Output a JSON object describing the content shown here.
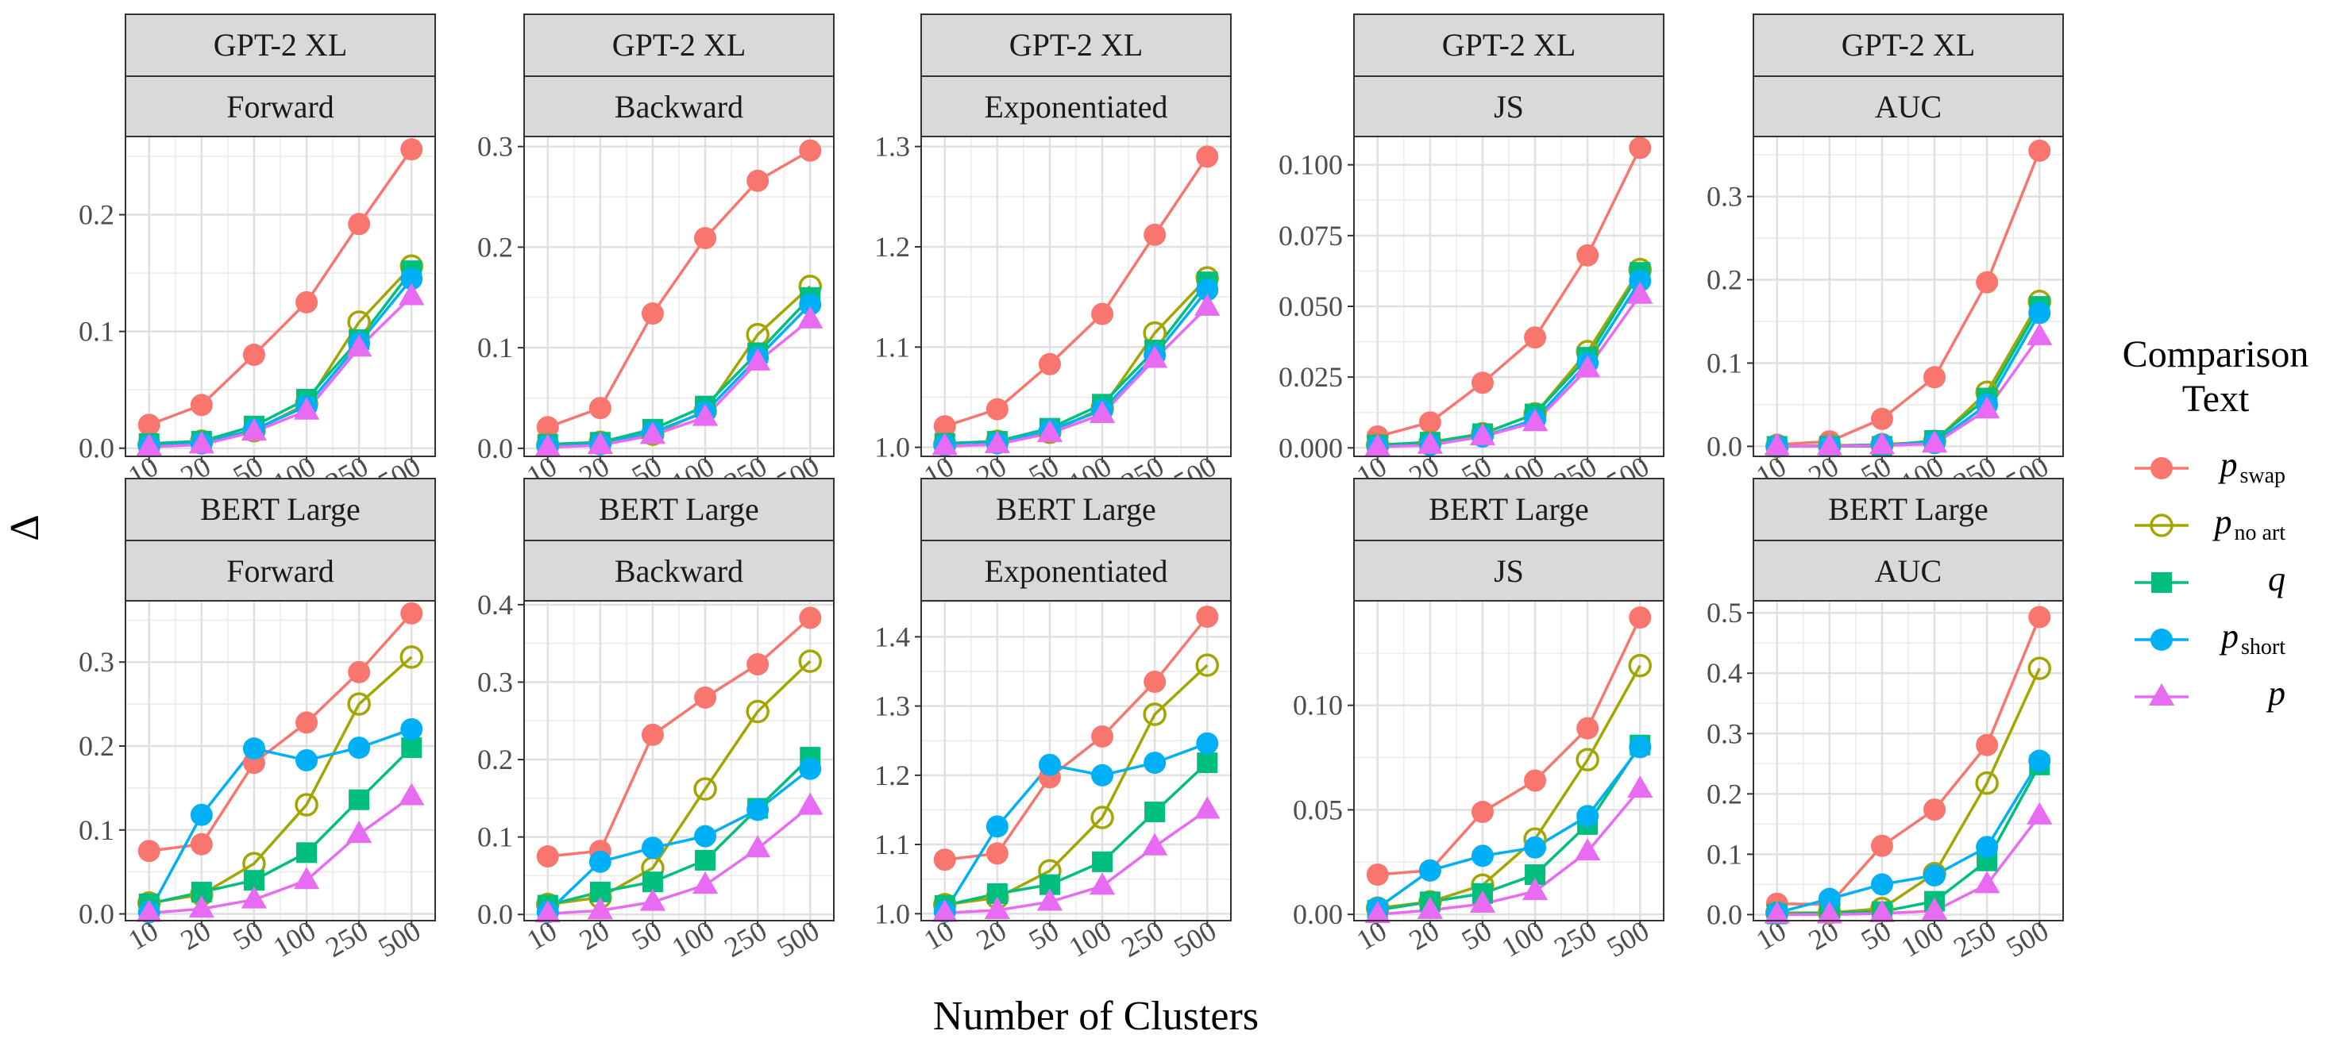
{
  "chart_data": {
    "type": "line",
    "xlabel": "Number of Clusters",
    "ylabel": "Δ",
    "x_categories": [
      "10",
      "20",
      "50",
      "100",
      "250",
      "500"
    ],
    "legend": {
      "title_lines": [
        "Comparison",
        "Text"
      ],
      "entries": [
        {
          "key": "pswap",
          "base": "p",
          "sub": "swap",
          "color": "#F8766D",
          "marker": "circle-filled"
        },
        {
          "key": "pnoart",
          "base": "p",
          "sub": "no art",
          "color": "#A3A500",
          "marker": "circle-open"
        },
        {
          "key": "q",
          "base": "q",
          "sub": "",
          "color": "#00BF7D",
          "marker": "square"
        },
        {
          "key": "pshort",
          "base": "p",
          "sub": "short",
          "color": "#00B0F6",
          "marker": "circle-filled"
        },
        {
          "key": "p",
          "base": "p",
          "sub": "",
          "color": "#E76BF3",
          "marker": "triangle"
        }
      ]
    },
    "panels": [
      {
        "model": "GPT-2 XL",
        "metric": "Forward",
        "ylim": [
          -0.007,
          0.267
        ],
        "yticks": [
          0.0,
          0.1,
          0.2
        ],
        "ytick_labels": [
          "0.0",
          "0.1",
          "0.2"
        ],
        "series": {
          "pswap": [
            0.02,
            0.037,
            0.08,
            0.125,
            0.192,
            0.256
          ],
          "pnoart": [
            0.003,
            0.006,
            0.015,
            0.038,
            0.108,
            0.156
          ],
          "q": [
            0.004,
            0.006,
            0.019,
            0.042,
            0.093,
            0.152
          ],
          "pshort": [
            0.002,
            0.004,
            0.016,
            0.036,
            0.09,
            0.145
          ],
          "p": [
            0.001,
            0.003,
            0.014,
            0.032,
            0.086,
            0.13
          ]
        }
      },
      {
        "model": "GPT-2 XL",
        "metric": "Backward",
        "ylim": [
          -0.008,
          0.31
        ],
        "yticks": [
          0.0,
          0.1,
          0.2,
          0.3
        ],
        "ytick_labels": [
          "0.0",
          "0.1",
          "0.2",
          "0.3"
        ],
        "series": {
          "pswap": [
            0.021,
            0.04,
            0.134,
            0.209,
            0.266,
            0.296
          ],
          "pnoart": [
            0.003,
            0.006,
            0.014,
            0.037,
            0.113,
            0.161
          ],
          "q": [
            0.004,
            0.006,
            0.019,
            0.042,
            0.095,
            0.15
          ],
          "pshort": [
            0.002,
            0.004,
            0.016,
            0.036,
            0.09,
            0.143
          ],
          "p": [
            0.001,
            0.003,
            0.013,
            0.031,
            0.086,
            0.128
          ]
        }
      },
      {
        "model": "GPT-2 XL",
        "metric": "Exponentiated",
        "ylim": [
          0.991,
          1.31
        ],
        "yticks": [
          1.0,
          1.1,
          1.2,
          1.3
        ],
        "ytick_labels": [
          "1.0",
          "1.1",
          "1.2",
          "1.3"
        ],
        "series": {
          "pswap": [
            1.021,
            1.038,
            1.083,
            1.133,
            1.212,
            1.29
          ],
          "pnoart": [
            1.003,
            1.006,
            1.015,
            1.039,
            1.114,
            1.169
          ],
          "q": [
            1.004,
            1.006,
            1.019,
            1.043,
            1.097,
            1.165
          ],
          "pshort": [
            1.002,
            1.004,
            1.017,
            1.037,
            1.092,
            1.157
          ],
          "p": [
            1.001,
            1.003,
            1.014,
            1.033,
            1.088,
            1.14
          ]
        }
      },
      {
        "model": "GPT-2 XL",
        "metric": "JS",
        "ylim": [
          -0.003,
          0.11
        ],
        "yticks": [
          0.0,
          0.025,
          0.05,
          0.075,
          0.1
        ],
        "ytick_labels": [
          "0.000",
          "0.025",
          "0.050",
          "0.075",
          "0.100"
        ],
        "series": {
          "pswap": [
            0.004,
            0.009,
            0.023,
            0.039,
            0.068,
            0.106
          ],
          "pnoart": [
            0.001,
            0.002,
            0.005,
            0.012,
            0.034,
            0.063
          ],
          "q": [
            0.001,
            0.002,
            0.005,
            0.012,
            0.032,
            0.062
          ],
          "pshort": [
            0.0005,
            0.001,
            0.004,
            0.01,
            0.03,
            0.059
          ],
          "p": [
            0.0003,
            0.001,
            0.004,
            0.009,
            0.028,
            0.054
          ]
        }
      },
      {
        "model": "GPT-2 XL",
        "metric": "AUC",
        "ylim": [
          -0.012,
          0.372
        ],
        "yticks": [
          0.0,
          0.1,
          0.2,
          0.3
        ],
        "ytick_labels": [
          "0.0",
          "0.1",
          "0.2",
          "0.3"
        ],
        "series": {
          "pswap": [
            0.002,
            0.006,
            0.033,
            0.083,
            0.197,
            0.355
          ],
          "pnoart": [
            0.0,
            0.001,
            0.002,
            0.006,
            0.065,
            0.174
          ],
          "q": [
            0.0,
            0.0,
            0.0,
            0.007,
            0.058,
            0.168
          ],
          "pshort": [
            0.0,
            0.0,
            0.002,
            0.004,
            0.05,
            0.16
          ],
          "p": [
            0.0,
            0.0,
            0.001,
            0.003,
            0.044,
            0.132
          ]
        }
      },
      {
        "model": "BERT Large",
        "metric": "Forward",
        "ylim": [
          -0.008,
          0.373
        ],
        "yticks": [
          0.0,
          0.1,
          0.2,
          0.3
        ],
        "ytick_labels": [
          "0.0",
          "0.1",
          "0.2",
          "0.3"
        ],
        "series": {
          "pswap": [
            0.075,
            0.083,
            0.18,
            0.228,
            0.288,
            0.358
          ],
          "pnoart": [
            0.013,
            0.023,
            0.06,
            0.13,
            0.25,
            0.306
          ],
          "q": [
            0.012,
            0.026,
            0.04,
            0.073,
            0.136,
            0.198
          ],
          "pshort": [
            0.002,
            0.118,
            0.197,
            0.183,
            0.198,
            0.22
          ],
          "p": [
            0.001,
            0.006,
            0.017,
            0.04,
            0.095,
            0.14
          ]
        }
      },
      {
        "model": "BERT Large",
        "metric": "Backward",
        "ylim": [
          -0.008,
          0.405
        ],
        "yticks": [
          0.0,
          0.1,
          0.2,
          0.3,
          0.4
        ],
        "ytick_labels": [
          "0.0",
          "0.1",
          "0.2",
          "0.3",
          "0.4"
        ],
        "series": {
          "pswap": [
            0.075,
            0.082,
            0.232,
            0.28,
            0.323,
            0.383
          ],
          "pnoart": [
            0.013,
            0.022,
            0.06,
            0.162,
            0.262,
            0.327
          ],
          "q": [
            0.012,
            0.029,
            0.042,
            0.07,
            0.137,
            0.203
          ],
          "pshort": [
            0.003,
            0.068,
            0.086,
            0.101,
            0.135,
            0.188
          ],
          "p": [
            0.001,
            0.005,
            0.016,
            0.038,
            0.085,
            0.14
          ]
        }
      },
      {
        "model": "BERT Large",
        "metric": "Exponentiated",
        "ylim": [
          0.99,
          1.452
        ],
        "yticks": [
          1.0,
          1.1,
          1.2,
          1.3,
          1.4
        ],
        "ytick_labels": [
          "1.0",
          "1.1",
          "1.2",
          "1.3",
          "1.4"
        ],
        "series": {
          "pswap": [
            1.078,
            1.087,
            1.197,
            1.256,
            1.335,
            1.429
          ],
          "pnoart": [
            1.013,
            1.023,
            1.062,
            1.139,
            1.288,
            1.359
          ],
          "q": [
            1.012,
            1.029,
            1.042,
            1.075,
            1.147,
            1.218
          ],
          "pshort": [
            1.003,
            1.126,
            1.215,
            1.2,
            1.218,
            1.246
          ],
          "p": [
            1.001,
            1.005,
            1.017,
            1.04,
            1.097,
            1.15
          ]
        }
      },
      {
        "model": "BERT Large",
        "metric": "JS",
        "ylim": [
          -0.003,
          0.15
        ],
        "yticks": [
          0.0,
          0.05,
          0.1
        ],
        "ytick_labels": [
          "0.00",
          "0.05",
          "0.10"
        ],
        "series": {
          "pswap": [
            0.019,
            0.021,
            0.049,
            0.064,
            0.089,
            0.142
          ],
          "pnoart": [
            0.003,
            0.006,
            0.014,
            0.036,
            0.074,
            0.119
          ],
          "q": [
            0.002,
            0.006,
            0.01,
            0.019,
            0.043,
            0.081
          ],
          "pshort": [
            0.003,
            0.021,
            0.028,
            0.032,
            0.047,
            0.08
          ],
          "p": [
            0.0,
            0.002,
            0.005,
            0.011,
            0.03,
            0.06
          ]
        }
      },
      {
        "model": "BERT Large",
        "metric": "AUC",
        "ylim": [
          -0.01,
          0.52
        ],
        "yticks": [
          0.0,
          0.1,
          0.2,
          0.3,
          0.4,
          0.5
        ],
        "ytick_labels": [
          "0.0",
          "0.1",
          "0.2",
          "0.3",
          "0.4",
          "0.5"
        ],
        "series": {
          "pswap": [
            0.018,
            0.017,
            0.114,
            0.174,
            0.281,
            0.493
          ],
          "pnoart": [
            0.003,
            0.003,
            0.01,
            0.068,
            0.218,
            0.408
          ],
          "q": [
            0.001,
            0.003,
            0.005,
            0.022,
            0.089,
            0.248
          ],
          "pshort": [
            0.003,
            0.026,
            0.05,
            0.065,
            0.112,
            0.255
          ],
          "p": [
            0.0,
            0.0,
            0.002,
            0.006,
            0.05,
            0.164
          ]
        }
      }
    ]
  }
}
